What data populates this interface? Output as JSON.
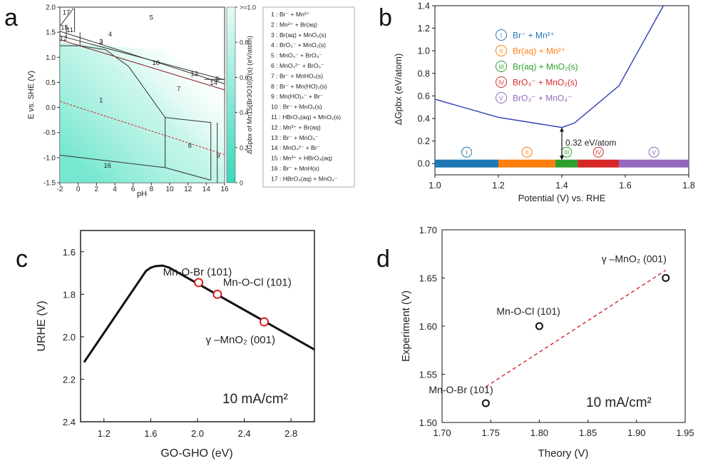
{
  "colors": {
    "teal": "#2fd6b8",
    "blue": "#2d3eb5",
    "red": "#d22020",
    "dark": "#111111"
  },
  "chart_data": [
    {
      "panel": "a",
      "type": "phase-diagram",
      "xlabel": "pH",
      "ylabel": "E vs. SHE (V)",
      "xlim": [
        -2,
        16
      ],
      "ylim": [
        -1.5,
        2.0
      ],
      "xticks": [
        "-2",
        "0",
        "2",
        "4",
        "6",
        "8",
        "10",
        "12",
        "14",
        "16"
      ],
      "yticks": [
        "2.0",
        "1.5",
        "1.0",
        "0.5",
        "0.0",
        "-0.5",
        "-1.0",
        "-1.5"
      ],
      "colorbar": {
        "label": "ΔGpbx of Mn15(Br3O10)2(s) (eV/atom)",
        "ticks": [
          ">=1.0",
          "0.8",
          "0.6",
          "0.4",
          "0.2",
          "0"
        ],
        "range": [
          0,
          1.0
        ]
      },
      "region_labels": [
        {
          "id": "1",
          "pH": 2.5,
          "E": 0.1
        },
        {
          "id": "2",
          "pH": 2.5,
          "E": 1.27
        },
        {
          "id": "3",
          "pH": 2.5,
          "E": 1.27
        },
        {
          "id": "4",
          "pH": 3.5,
          "E": 1.42
        },
        {
          "id": "5",
          "pH": 8.0,
          "E": 1.75
        },
        {
          "id": "7",
          "pH": 11.0,
          "E": 0.33
        },
        {
          "id": "8",
          "pH": 12.2,
          "E": -0.8
        },
        {
          "id": "9",
          "pH": 15.3,
          "E": -1.0
        },
        {
          "id": "10",
          "pH": 8.5,
          "E": 0.85
        },
        {
          "id": "11",
          "pH": -0.9,
          "E": 1.5
        },
        {
          "id": "12",
          "pH": -1.6,
          "E": 1.33
        },
        {
          "id": "13",
          "pH": 12.7,
          "E": 0.63
        },
        {
          "id": "14",
          "pH": 14.8,
          "E": 0.45
        },
        {
          "id": "15",
          "pH": -1.5,
          "E": 1.55
        },
        {
          "id": "16",
          "pH": 3.2,
          "E": -1.2
        },
        {
          "id": "6",
          "pH": 15.2,
          "E": 0.53
        },
        {
          "id": "17",
          "pH": -1.3,
          "E": 1.85
        }
      ],
      "legend": [
        "1 : Br⁻ + Mn²⁺",
        "2 : Mn²⁺ + Br(aq)",
        "3 : Br(aq) + MnO₂(s)",
        "4 : BrO₃⁻ + MnO₂(s)",
        "5 : MnO₄⁻ + BrO₃⁻",
        "6 : MnO₄²⁻ + BrO₃⁻",
        "7 : Br⁻ + MnHO₂(s)",
        "8 : Br⁻ + Mn(HO)₂(s)",
        "9 : Mn(HO)₃⁻ + Br⁻",
        "10 : Br⁻ + MnO₂(s)",
        "11 : HBrO₃(aq) + MnO₂(s)",
        "12 : Mn³⁺ + Br(aq)",
        "13 : Br⁻ + MnO₄⁻",
        "14 : MnO₄²⁻ + Br⁻",
        "15 : Mn³⁺ + HBrO₃(aq)",
        "16 : Br⁻ + MnH(s)",
        "17 : HBrO₃(aq) + MnO₄⁻"
      ]
    },
    {
      "panel": "b",
      "type": "line",
      "xlabel": "Potential (V) vs. RHE",
      "ylabel": "ΔGpbx (eV/atom)",
      "xlim": [
        1.0,
        1.8
      ],
      "ylim": [
        -0.1,
        1.4
      ],
      "xticks": [
        "1.0",
        "1.2",
        "1.4",
        "1.6",
        "1.8"
      ],
      "yticks": [
        "0.0",
        "0.2",
        "0.4",
        "0.6",
        "0.8",
        "1.0",
        "1.2",
        "1.4"
      ],
      "series": [
        {
          "x": [
            1.0,
            1.2,
            1.4,
            1.44,
            1.58,
            1.72
          ],
          "y": [
            0.57,
            0.41,
            0.32,
            0.36,
            0.69,
            1.4
          ]
        }
      ],
      "annotation": {
        "text": "0.32 eV/atom",
        "x": 1.4,
        "y": 0.32
      },
      "bands": [
        {
          "label": "I",
          "from": 1.0,
          "to": 1.2,
          "color": "#1f77b4"
        },
        {
          "label": "II",
          "from": 1.2,
          "to": 1.38,
          "color": "#ff7f0e"
        },
        {
          "label": "III",
          "from": 1.38,
          "to": 1.45,
          "color": "#2ca02c"
        },
        {
          "label": "IV",
          "from": 1.45,
          "to": 1.58,
          "color": "#d62728"
        },
        {
          "label": "V",
          "from": 1.58,
          "to": 1.8,
          "color": "#9467bd"
        }
      ],
      "legend": [
        {
          "num": "I",
          "text": "Br⁻ + Mn²⁺",
          "color": "#1f77b4"
        },
        {
          "num": "II",
          "text": "Br(aq) + Mn²⁺",
          "color": "#ff7f0e"
        },
        {
          "num": "III",
          "text": "Br(aq) + MnO₂(s)",
          "color": "#2ca02c"
        },
        {
          "num": "IV",
          "text": "BrO₃⁻ + MnO₂(s)",
          "color": "#d62728"
        },
        {
          "num": "V",
          "text": "BrO₃⁻ + MnO₄⁻",
          "color": "#9467bd"
        }
      ]
    },
    {
      "panel": "c",
      "type": "line",
      "xlabel": "GO-GHO (eV)",
      "ylabel": "URHE (V)",
      "xlim": [
        1.0,
        3.0
      ],
      "ylim": [
        2.4,
        1.5
      ],
      "xticks": [
        "1.2",
        "1.6",
        "2.0",
        "2.4",
        "2.8"
      ],
      "yticks": [
        "1.6",
        "1.8",
        "2.0",
        "2.2",
        "2.4"
      ],
      "series": [
        {
          "x": [
            1.03,
            1.56,
            1.6,
            1.64,
            1.7,
            1.76,
            3.0
          ],
          "y": [
            2.12,
            1.69,
            1.675,
            1.668,
            1.665,
            1.675,
            2.06
          ]
        }
      ],
      "points": [
        {
          "label": "Mn-O-Br (101)",
          "x": 2.01,
          "y": 1.745
        },
        {
          "label": "Mn-O-Cl (101)",
          "x": 2.17,
          "y": 1.8
        },
        {
          "label": "γ –MnO₂ (001)",
          "x": 2.57,
          "y": 1.93
        }
      ],
      "annotation": "10 mA/cm²"
    },
    {
      "panel": "d",
      "type": "scatter",
      "xlabel": "Theory (V)",
      "ylabel": "Experiment (V)",
      "xlim": [
        1.7,
        1.95
      ],
      "ylim": [
        1.5,
        1.7
      ],
      "xticks": [
        "1.70",
        "1.75",
        "1.80",
        "1.85",
        "1.90",
        "1.95"
      ],
      "yticks": [
        "1.50",
        "1.55",
        "1.60",
        "1.65",
        "1.70"
      ],
      "points": [
        {
          "label": "Mn-O-Br (101)",
          "x": 1.745,
          "y": 1.52
        },
        {
          "label": "Mn-O-Cl (101)",
          "x": 1.8,
          "y": 1.6
        },
        {
          "label": "γ –MnO₂ (001)",
          "x": 1.93,
          "y": 1.65
        }
      ],
      "fit_line": {
        "x": [
          1.745,
          1.93
        ],
        "y": [
          1.537,
          1.658
        ]
      },
      "annotation": "10 mA/cm²"
    }
  ],
  "panel_letters": [
    "a",
    "b",
    "c",
    "d"
  ]
}
